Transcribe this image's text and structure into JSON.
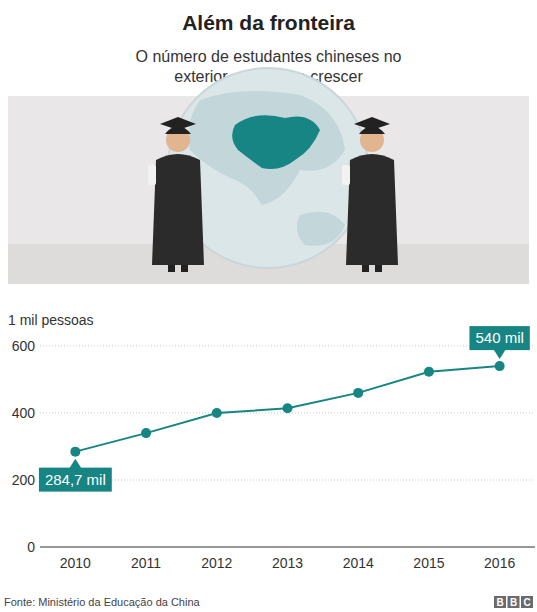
{
  "chart_data": {
    "type": "line",
    "title": "Além da fronteira",
    "subtitle": "O número de estudantes chineses no exterior continua a crescer",
    "ylabel": "1 mil pessoas",
    "categories": [
      "2010",
      "2011",
      "2012",
      "2013",
      "2014",
      "2015",
      "2016"
    ],
    "values": [
      284.7,
      340,
      400,
      414,
      460,
      523,
      540
    ],
    "value_labels": [
      "284,7 mil",
      null,
      null,
      null,
      null,
      null,
      "540 mil"
    ],
    "data_labels": true,
    "color": "#178584",
    "marker": "circle",
    "ylim": [
      0,
      600
    ],
    "yticks": [
      0,
      200,
      400,
      600
    ],
    "grid": true,
    "source": "Fonte: Ministério da Educação da China",
    "credit": "BBC"
  }
}
